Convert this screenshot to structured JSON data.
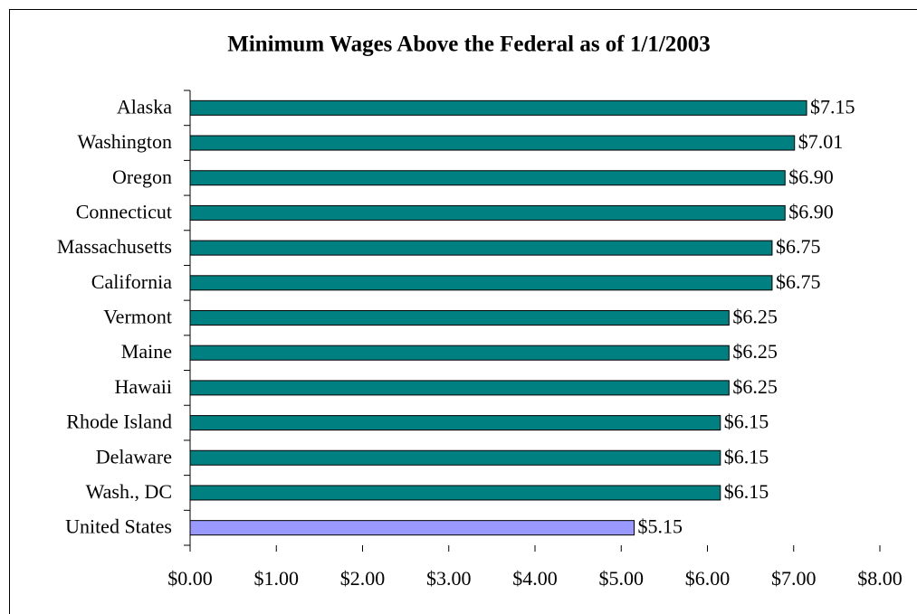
{
  "chart_data": {
    "type": "barh",
    "title": "Minimum Wages Above the Federal as of 1/1/2003",
    "categories": [
      "Alaska",
      "Washington",
      "Oregon",
      "Connecticut",
      "Massachusetts",
      "California",
      "Vermont",
      "Maine",
      "Hawaii",
      "Rhode Island",
      "Delaware",
      "Wash., DC",
      "United States"
    ],
    "values": [
      7.15,
      7.01,
      6.9,
      6.9,
      6.75,
      6.75,
      6.25,
      6.25,
      6.25,
      6.15,
      6.15,
      6.15,
      5.15
    ],
    "value_labels": [
      "$7.15",
      "$7.01",
      "$6.90",
      "$6.90",
      "$6.75",
      "$6.75",
      "$6.25",
      "$6.25",
      "$6.25",
      "$6.15",
      "$6.15",
      "$6.15",
      "$5.15"
    ],
    "colors": [
      "#008080",
      "#008080",
      "#008080",
      "#008080",
      "#008080",
      "#008080",
      "#008080",
      "#008080",
      "#008080",
      "#008080",
      "#008080",
      "#008080",
      "#9999ff"
    ],
    "xlim": [
      0,
      8
    ],
    "xticks": [
      {
        "value": 0,
        "label": "$0.00"
      },
      {
        "value": 1,
        "label": "$1.00"
      },
      {
        "value": 2,
        "label": "$2.00"
      },
      {
        "value": 3,
        "label": "$3.00"
      },
      {
        "value": 4,
        "label": "$4.00"
      },
      {
        "value": 5,
        "label": "$5.00"
      },
      {
        "value": 6,
        "label": "$6.00"
      },
      {
        "value": 7,
        "label": "$7.00"
      },
      {
        "value": 8,
        "label": "$8.00"
      }
    ],
    "grid": false
  }
}
